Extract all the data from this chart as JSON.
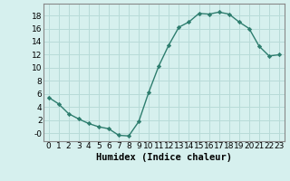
{
  "x": [
    0,
    1,
    2,
    3,
    4,
    5,
    6,
    7,
    8,
    9,
    10,
    11,
    12,
    13,
    14,
    15,
    16,
    17,
    18,
    19,
    20,
    21,
    22,
    23
  ],
  "y": [
    5.5,
    4.5,
    3.0,
    2.2,
    1.5,
    1.0,
    0.7,
    -0.3,
    -0.4,
    1.8,
    6.3,
    10.3,
    13.5,
    16.2,
    17.0,
    18.3,
    18.2,
    18.5,
    18.2,
    17.0,
    16.0,
    13.3,
    11.8,
    12.0
  ],
  "line_color": "#2d7d6e",
  "marker_color": "#2d7d6e",
  "bg_color": "#d6f0ee",
  "grid_color": "#b8dbd8",
  "xlabel": "Humidex (Indice chaleur)",
  "yticks": [
    0,
    2,
    4,
    6,
    8,
    10,
    12,
    14,
    16,
    18
  ],
  "xticks": [
    0,
    1,
    2,
    3,
    4,
    5,
    6,
    7,
    8,
    9,
    10,
    11,
    12,
    13,
    14,
    15,
    16,
    17,
    18,
    19,
    20,
    21,
    22,
    23
  ],
  "ylim": [
    -1.2,
    19.8
  ],
  "xlim": [
    -0.5,
    23.5
  ],
  "tick_fontsize": 6.5,
  "xlabel_fontsize": 7.5
}
